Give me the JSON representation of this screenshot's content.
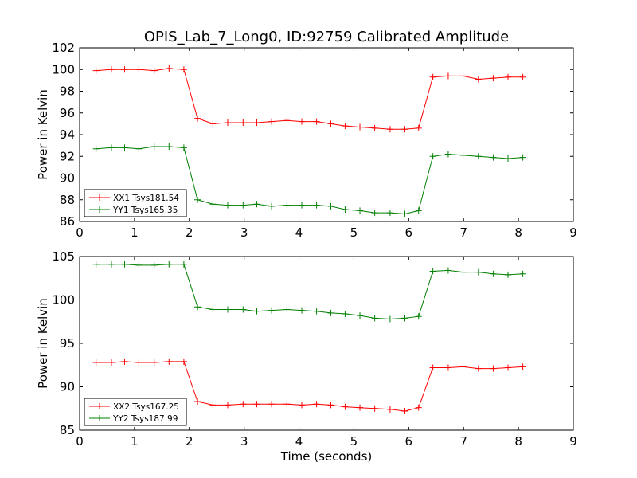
{
  "figure": {
    "title": "OPIS_Lab_7_Long0, ID:92759 Calibrated Amplitude",
    "xlabel": "Time (seconds)"
  },
  "colors": {
    "red": "#ff0000",
    "green": "#008000",
    "axes": "#000000",
    "background": "#ffffff"
  },
  "chart_data": [
    {
      "type": "line",
      "ylabel": "Power in Kelvin",
      "xlim": [
        0,
        9
      ],
      "ylim": [
        86,
        102
      ],
      "xticks": [
        0,
        1,
        2,
        3,
        4,
        5,
        6,
        7,
        8,
        9
      ],
      "yticks": [
        86,
        88,
        90,
        92,
        94,
        96,
        98,
        100,
        102
      ],
      "grid": false,
      "legend_position": "lower-left",
      "x": [
        0.27,
        0.55,
        0.82,
        1.09,
        1.36,
        1.64,
        1.91,
        2.18,
        2.45,
        2.73,
        3.0,
        3.27,
        3.55,
        3.82,
        4.09,
        4.36,
        4.64,
        4.91,
        5.18,
        5.45,
        5.73,
        6.0,
        6.27,
        6.55,
        6.82,
        7.09,
        7.36,
        7.64,
        7.91,
        8.18
      ],
      "series": [
        {
          "name": "XX1 Tsys181.54",
          "color": "#ff0000",
          "x": [
            0.3,
            0.58,
            0.82,
            1.08,
            1.36,
            1.63,
            1.9,
            2.15,
            2.43,
            2.7,
            2.98,
            3.23,
            3.5,
            3.78,
            4.05,
            4.32,
            4.58,
            4.84,
            5.11,
            5.38,
            5.66,
            5.93,
            6.18,
            6.44,
            6.72,
            6.99,
            7.27,
            7.54,
            7.81,
            8.08
          ],
          "values": [
            99.9,
            100.0,
            100.0,
            100.0,
            99.9,
            100.1,
            100.0,
            95.5,
            95.0,
            95.1,
            95.1,
            95.1,
            95.2,
            95.3,
            95.2,
            95.2,
            95.0,
            94.8,
            94.7,
            94.6,
            94.5,
            94.5,
            94.6,
            99.3,
            99.4,
            99.4,
            99.1,
            99.2,
            99.3,
            99.3
          ]
        },
        {
          "name": "YY1 Tsys165.35",
          "color": "#008000",
          "x": [
            0.3,
            0.58,
            0.82,
            1.08,
            1.36,
            1.63,
            1.9,
            2.15,
            2.43,
            2.7,
            2.98,
            3.23,
            3.5,
            3.78,
            4.05,
            4.32,
            4.58,
            4.84,
            5.11,
            5.38,
            5.66,
            5.93,
            6.18,
            6.44,
            6.72,
            6.99,
            7.27,
            7.54,
            7.81,
            8.08
          ],
          "values": [
            92.7,
            92.8,
            92.8,
            92.7,
            92.9,
            92.9,
            92.8,
            88.0,
            87.6,
            87.5,
            87.5,
            87.6,
            87.4,
            87.5,
            87.5,
            87.5,
            87.4,
            87.1,
            87.0,
            86.8,
            86.8,
            86.7,
            87.0,
            92.0,
            92.2,
            92.1,
            92.0,
            91.9,
            91.8,
            91.9
          ]
        }
      ]
    },
    {
      "type": "line",
      "ylabel": "Power in Kelvin",
      "xlabel": "Time (seconds)",
      "xlim": [
        0,
        9
      ],
      "ylim": [
        85,
        105
      ],
      "xticks": [
        0,
        1,
        2,
        3,
        4,
        5,
        6,
        7,
        8,
        9
      ],
      "yticks": [
        85,
        90,
        95,
        100,
        105
      ],
      "grid": false,
      "legend_position": "lower-left",
      "series": [
        {
          "name": "XX2 Tsys167.25",
          "color": "#ff0000",
          "x": [
            0.3,
            0.58,
            0.82,
            1.08,
            1.36,
            1.63,
            1.9,
            2.15,
            2.43,
            2.7,
            2.98,
            3.23,
            3.5,
            3.78,
            4.05,
            4.32,
            4.58,
            4.84,
            5.11,
            5.38,
            5.66,
            5.93,
            6.18,
            6.44,
            6.72,
            6.99,
            7.27,
            7.54,
            7.81,
            8.08
          ],
          "values": [
            92.8,
            92.8,
            92.9,
            92.8,
            92.8,
            92.9,
            92.9,
            88.3,
            87.9,
            87.9,
            88.0,
            88.0,
            88.0,
            88.0,
            87.9,
            88.0,
            87.9,
            87.7,
            87.6,
            87.5,
            87.4,
            87.2,
            87.6,
            92.2,
            92.2,
            92.3,
            92.1,
            92.1,
            92.2,
            92.3
          ]
        },
        {
          "name": "YY2 Tsys187.99",
          "color": "#008000",
          "x": [
            0.3,
            0.58,
            0.82,
            1.08,
            1.36,
            1.63,
            1.9,
            2.15,
            2.43,
            2.7,
            2.98,
            3.23,
            3.5,
            3.78,
            4.05,
            4.32,
            4.58,
            4.84,
            5.11,
            5.38,
            5.66,
            5.93,
            6.18,
            6.44,
            6.72,
            6.99,
            7.27,
            7.54,
            7.81,
            8.08
          ],
          "values": [
            104.1,
            104.1,
            104.1,
            104.0,
            104.0,
            104.1,
            104.1,
            99.2,
            98.9,
            98.9,
            98.9,
            98.7,
            98.8,
            98.9,
            98.8,
            98.7,
            98.5,
            98.4,
            98.2,
            97.9,
            97.8,
            97.9,
            98.1,
            103.3,
            103.4,
            103.2,
            103.2,
            103.0,
            102.9,
            103.0
          ]
        }
      ]
    }
  ]
}
